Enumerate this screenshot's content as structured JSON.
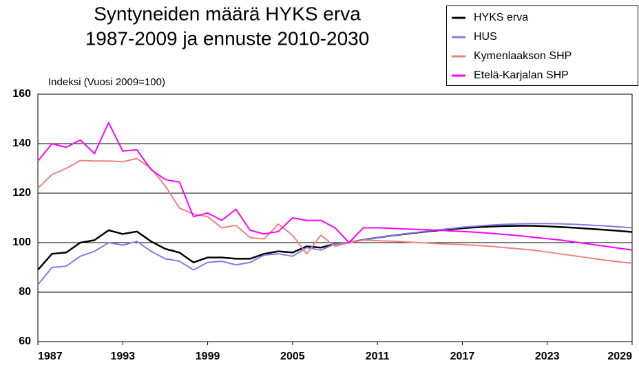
{
  "chart_data": {
    "type": "line",
    "title": [
      "Syntyneiden määrä HYKS erva",
      "1987-2009  ja ennuste 2010-2030"
    ],
    "y_label": "Indeksi (Vuosi 2009=100)",
    "x": [
      1987,
      1988,
      1989,
      1990,
      1991,
      1992,
      1993,
      1994,
      1995,
      1996,
      1997,
      1998,
      1999,
      2000,
      2001,
      2002,
      2003,
      2004,
      2005,
      2006,
      2007,
      2008,
      2009,
      2010,
      2011,
      2012,
      2013,
      2014,
      2015,
      2016,
      2017,
      2018,
      2019,
      2020,
      2021,
      2022,
      2023,
      2024,
      2025,
      2026,
      2027,
      2028,
      2029
    ],
    "xlim": [
      1987,
      2029
    ],
    "xticks": [
      1987,
      1993,
      1999,
      2005,
      2011,
      2017,
      2023,
      2029
    ],
    "ylim": [
      60,
      160
    ],
    "yticks": [
      60,
      80,
      100,
      120,
      140,
      160
    ],
    "grid": true,
    "legend": "top-right",
    "series": [
      {
        "name": "HYKS erva",
        "color": "#000000",
        "values": [
          89,
          95.5,
          96,
          100,
          101,
          105,
          103.5,
          104.5,
          100.5,
          97.5,
          96,
          92,
          94,
          94,
          93.5,
          93.5,
          95.5,
          96.5,
          96,
          98.5,
          98,
          99.5,
          100,
          101.2,
          102,
          102.8,
          103.5,
          104.2,
          104.8,
          105.3,
          105.8,
          106.2,
          106.5,
          106.7,
          106.8,
          106.8,
          106.6,
          106.3,
          106,
          105.6,
          105.2,
          104.8,
          104.3
        ]
      },
      {
        "name": "HUS",
        "color": "#7b7bef",
        "values": [
          83,
          90,
          90.5,
          94.5,
          96.5,
          100,
          99,
          100.5,
          96.5,
          93.5,
          92.5,
          89,
          92,
          92.5,
          91,
          92,
          95,
          95.5,
          94.5,
          98,
          97,
          99.5,
          100,
          101.2,
          102,
          102.8,
          103.6,
          104.3,
          105,
          105.6,
          106.2,
          106.7,
          107.1,
          107.4,
          107.6,
          107.7,
          107.7,
          107.6,
          107.4,
          107.1,
          106.8,
          106.4,
          106
        ]
      },
      {
        "name": "Kymenlaakson SHP",
        "color": "#f08080",
        "values": [
          122,
          127.5,
          130,
          133.2,
          133,
          133,
          132.7,
          134,
          130,
          123,
          114,
          111.5,
          110.5,
          106,
          107,
          102,
          101.5,
          107.5,
          103,
          95.5,
          103,
          98.5,
          100,
          101,
          100.8,
          100.6,
          100.3,
          100,
          99.7,
          99.4,
          99.2,
          98.9,
          98.5,
          98,
          97.5,
          97,
          96.2,
          95.4,
          94.6,
          93.8,
          93,
          92.3,
          91.7
        ]
      },
      {
        "name": "Etelä-Karjalan SHP",
        "color": "#ff00ff",
        "values": [
          133,
          140,
          138.5,
          141.5,
          136,
          148.5,
          137,
          137.5,
          129.5,
          125.5,
          124.5,
          110.5,
          112,
          109,
          113.5,
          105,
          103.5,
          104.5,
          110,
          109,
          109,
          106,
          100,
          106,
          106,
          105.8,
          105.5,
          105.3,
          105.1,
          104.8,
          104.5,
          104.2,
          103.8,
          103.3,
          102.8,
          102.2,
          101.6,
          101,
          100.2,
          99.4,
          98.6,
          97.8,
          97
        ]
      }
    ]
  }
}
